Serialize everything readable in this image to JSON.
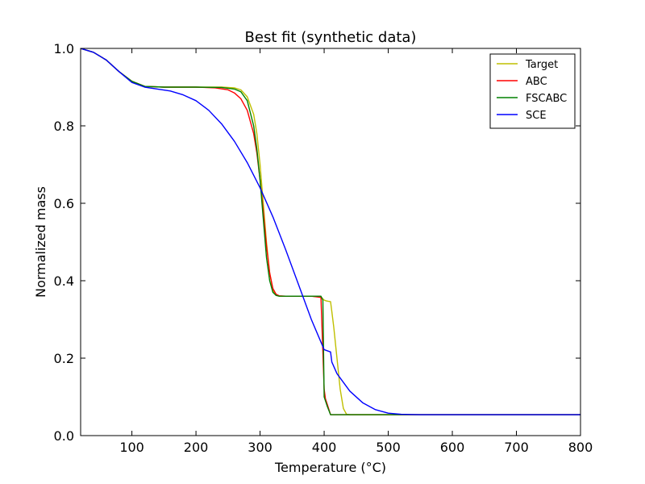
{
  "chart_data": {
    "type": "line",
    "title": "Best fit (synthetic data)",
    "xlabel": "Temperature (°C)",
    "ylabel": "Normalized mass",
    "xlim": [
      20,
      800
    ],
    "ylim": [
      0.0,
      1.0
    ],
    "xticks": [
      100,
      200,
      300,
      400,
      500,
      600,
      700,
      800
    ],
    "xtick_labels": [
      "100",
      "200",
      "300",
      "400",
      "500",
      "600",
      "700",
      "800"
    ],
    "yticks": [
      0.0,
      0.2,
      0.4,
      0.6,
      0.8,
      1.0
    ],
    "ytick_labels": [
      "0.0",
      "0.2",
      "0.4",
      "0.6",
      "0.8",
      "1.0"
    ],
    "grid": false,
    "legend_position": "top-right",
    "series": [
      {
        "name": "Target",
        "color": "#bfbf00",
        "x": [
          20,
          40,
          60,
          80,
          100,
          120,
          150,
          200,
          240,
          260,
          270,
          280,
          290,
          295,
          300,
          305,
          310,
          315,
          320,
          325,
          330,
          340,
          360,
          380,
          395,
          400,
          403,
          406,
          410,
          412,
          415,
          420,
          425,
          430,
          435,
          440,
          450,
          500,
          600,
          700,
          800
        ],
        "y": [
          1.0,
          0.99,
          0.97,
          0.94,
          0.915,
          0.902,
          0.9,
          0.9,
          0.9,
          0.898,
          0.893,
          0.875,
          0.83,
          0.78,
          0.7,
          0.6,
          0.5,
          0.42,
          0.375,
          0.362,
          0.36,
          0.36,
          0.36,
          0.36,
          0.358,
          0.35,
          0.348,
          0.347,
          0.346,
          0.32,
          0.28,
          0.2,
          0.12,
          0.07,
          0.055,
          0.054,
          0.054,
          0.054,
          0.054,
          0.054,
          0.054
        ]
      },
      {
        "name": "ABC",
        "color": "#ff0000",
        "x": [
          20,
          40,
          60,
          80,
          100,
          120,
          150,
          200,
          230,
          250,
          260,
          270,
          280,
          290,
          295,
          300,
          305,
          310,
          315,
          320,
          325,
          330,
          340,
          360,
          380,
          395,
          400,
          402,
          405,
          410,
          450,
          500,
          600,
          700,
          800
        ],
        "y": [
          1.0,
          0.99,
          0.97,
          0.94,
          0.915,
          0.902,
          0.9,
          0.9,
          0.898,
          0.893,
          0.885,
          0.87,
          0.84,
          0.78,
          0.73,
          0.66,
          0.58,
          0.49,
          0.42,
          0.38,
          0.365,
          0.361,
          0.36,
          0.36,
          0.36,
          0.357,
          0.12,
          0.095,
          0.08,
          0.054,
          0.054,
          0.054,
          0.054,
          0.054,
          0.054
        ]
      },
      {
        "name": "FSCABC",
        "color": "#008000",
        "x": [
          20,
          40,
          60,
          80,
          100,
          120,
          150,
          200,
          240,
          260,
          270,
          280,
          290,
          295,
          300,
          305,
          310,
          315,
          320,
          325,
          330,
          340,
          360,
          380,
          395,
          398,
          400,
          402,
          405,
          410,
          450,
          500,
          600,
          700,
          800
        ],
        "y": [
          1.0,
          0.99,
          0.97,
          0.94,
          0.915,
          0.902,
          0.9,
          0.9,
          0.899,
          0.895,
          0.888,
          0.865,
          0.8,
          0.74,
          0.66,
          0.56,
          0.46,
          0.4,
          0.37,
          0.362,
          0.36,
          0.36,
          0.36,
          0.36,
          0.36,
          0.35,
          0.1,
          0.09,
          0.075,
          0.054,
          0.054,
          0.054,
          0.054,
          0.054,
          0.054
        ]
      },
      {
        "name": "SCE",
        "color": "#0000ff",
        "x": [
          20,
          40,
          60,
          80,
          100,
          120,
          140,
          160,
          180,
          200,
          220,
          240,
          260,
          280,
          300,
          320,
          340,
          360,
          380,
          400,
          410,
          412,
          420,
          440,
          460,
          480,
          500,
          520,
          550,
          600,
          700,
          800
        ],
        "y": [
          1.0,
          0.99,
          0.97,
          0.94,
          0.912,
          0.9,
          0.895,
          0.89,
          0.88,
          0.865,
          0.84,
          0.805,
          0.76,
          0.705,
          0.64,
          0.565,
          0.48,
          0.39,
          0.3,
          0.222,
          0.216,
          0.19,
          0.16,
          0.115,
          0.085,
          0.067,
          0.058,
          0.055,
          0.054,
          0.054,
          0.054,
          0.054
        ]
      }
    ]
  }
}
